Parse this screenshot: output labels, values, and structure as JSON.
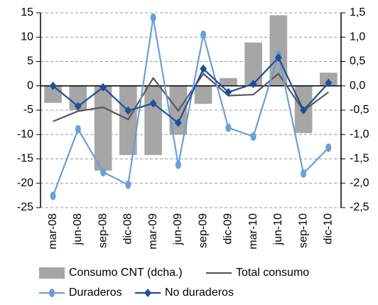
{
  "chart_data": {
    "type": "bar-line",
    "categories": [
      "mar-08",
      "jun-08",
      "sep-08",
      "dic-08",
      "mar-09",
      "jun-09",
      "sep-09",
      "dic-09",
      "mar-10",
      "jun-10",
      "sep-10",
      "dic-10"
    ],
    "series": [
      {
        "name": "Consumo CNT (dcha.)",
        "type": "bar",
        "axis": "y2",
        "color": "#a6a6a6",
        "values": [
          -0.35,
          -0.5,
          -1.74,
          -1.42,
          -1.42,
          -1.0,
          -0.37,
          0.16,
          0.89,
          1.45,
          -0.97,
          0.27
        ]
      },
      {
        "name": "Total consumo",
        "type": "line",
        "color": "#595959",
        "values": [
          -7.3,
          -5.2,
          -4.4,
          -6.9,
          1.6,
          -5.1,
          2.5,
          -2.0,
          -1.8,
          2.5,
          -5.1,
          -1.3
        ]
      },
      {
        "name": "Duraderos",
        "type": "line",
        "marker": "circle",
        "color": "#6a9fd8",
        "values": [
          -22.6,
          -8.9,
          -17.7,
          -20.3,
          14.0,
          -16.2,
          10.5,
          -8.6,
          -10.4,
          6.4,
          -18.0,
          -12.7
        ]
      },
      {
        "name": "No duraderos",
        "type": "line",
        "marker": "diamond",
        "color": "#1f4e9a",
        "values": [
          0.0,
          -4.2,
          -0.3,
          -5.1,
          -3.6,
          -7.6,
          3.5,
          -1.3,
          0.4,
          5.8,
          -5.0,
          0.6
        ]
      }
    ],
    "ylim": [
      -25,
      15
    ],
    "yticks": [
      -25,
      -20,
      -15,
      -10,
      -5,
      0,
      5,
      10,
      15
    ],
    "y2lim": [
      -2.5,
      1.5
    ],
    "y2ticks": [
      {
        "value": -2.5,
        "label": "-2,5"
      },
      {
        "value": -2.0,
        "label": "-2,0"
      },
      {
        "value": -1.5,
        "label": "-1,5"
      },
      {
        "value": -1.0,
        "label": "-1,0"
      },
      {
        "value": -0.5,
        "label": "-0,5"
      },
      {
        "value": 0.0,
        "label": "0,0"
      },
      {
        "value": 0.5,
        "label": "0,5"
      },
      {
        "value": 1.0,
        "label": "1,0"
      },
      {
        "value": 1.5,
        "label": "1,5"
      }
    ],
    "grid": true
  }
}
